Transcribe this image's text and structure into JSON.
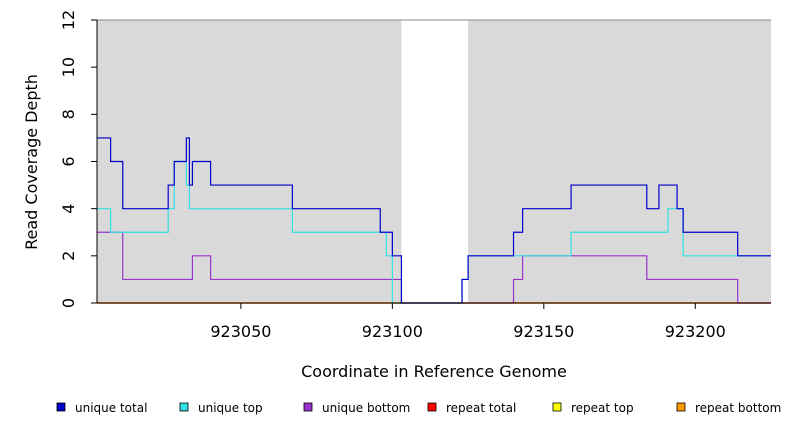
{
  "chart_data": {
    "type": "line",
    "title": "",
    "xlabel": "Coordinate in Reference Genome",
    "ylabel": "Read Coverage Depth",
    "xlim": [
      923002.5,
      923225
    ],
    "ylim": [
      0,
      12
    ],
    "xticks": [
      923050,
      923100,
      923150,
      923200
    ],
    "xtick_labels": [
      "923050",
      "923100",
      "923150",
      "923200"
    ],
    "yticks": [
      0,
      2,
      4,
      6,
      8,
      10,
      12
    ],
    "ytick_labels": [
      "0",
      "2",
      "4",
      "6",
      "8",
      "10",
      "12"
    ],
    "grid": false,
    "background_color": "#d9d9d9",
    "shaded_regions": [
      [
        923002.5,
        923103
      ],
      [
        923125,
        923225
      ]
    ],
    "legend_position": "bottom",
    "series": [
      {
        "name": "unique total",
        "color": "#0000cc",
        "x": [
          923002.5,
          923007,
          923007,
          923011,
          923011,
          923026,
          923026,
          923028,
          923028,
          923032,
          923032,
          923033,
          923033,
          923034,
          923034,
          923040,
          923040,
          923067,
          923067,
          923096,
          923096,
          923100,
          923100,
          923103,
          923103,
          923123,
          923123,
          923125,
          923125,
          923140,
          923140,
          923143,
          923143,
          923159,
          923159,
          923184,
          923184,
          923188,
          923188,
          923194,
          923194,
          923196,
          923196,
          923214,
          923214,
          923225
        ],
        "y": [
          7,
          7,
          6,
          6,
          4,
          4,
          5,
          5,
          6,
          6,
          7,
          7,
          5,
          5,
          6,
          6,
          5,
          5,
          4,
          4,
          3,
          3,
          2,
          2,
          0,
          0,
          1,
          1,
          2,
          2,
          3,
          3,
          4,
          4,
          5,
          5,
          4,
          4,
          5,
          5,
          4,
          4,
          3,
          3,
          2,
          2
        ]
      },
      {
        "name": "unique top",
        "color": "#33e0e0",
        "x": [
          923002.5,
          923007,
          923007,
          923026,
          923026,
          923028,
          923028,
          923032,
          923032,
          923033,
          923033,
          923067,
          923067,
          923098,
          923098,
          923100,
          923100,
          923123,
          923123,
          923125,
          923125,
          923159,
          923159,
          923191,
          923191,
          923196,
          923196,
          923225
        ],
        "y": [
          4,
          4,
          3,
          3,
          4,
          4,
          6,
          6,
          5,
          5,
          4,
          4,
          3,
          3,
          2,
          2,
          0,
          0,
          1,
          1,
          2,
          2,
          3,
          3,
          4,
          4,
          2,
          2
        ]
      },
      {
        "name": "unique bottom",
        "color": "#9933cc",
        "x": [
          923002.5,
          923011,
          923011,
          923034,
          923034,
          923040,
          923040,
          923103,
          923103,
          923140,
          923140,
          923143,
          923143,
          923184,
          923184,
          923214,
          923214,
          923225
        ],
        "y": [
          3,
          3,
          1,
          1,
          2,
          2,
          1,
          1,
          0,
          0,
          1,
          1,
          2,
          2,
          1,
          1,
          0,
          0
        ]
      },
      {
        "name": "repeat total",
        "color": "#ff0000",
        "x": [
          923002.5,
          923225
        ],
        "y": [
          0,
          0
        ]
      },
      {
        "name": "repeat top",
        "color": "#ffff00",
        "x": [
          923002.5,
          923225
        ],
        "y": [
          0,
          0
        ]
      },
      {
        "name": "repeat bottom",
        "color": "#ff9900",
        "x": [
          923002.5,
          923225
        ],
        "y": [
          0,
          0
        ]
      }
    ]
  }
}
